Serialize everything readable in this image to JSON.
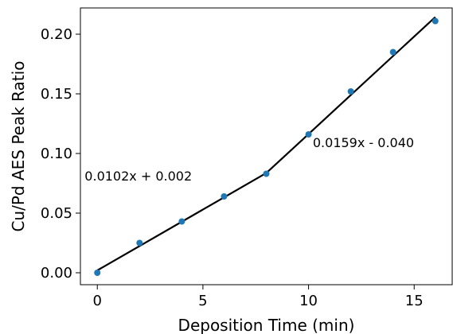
{
  "chart_data": {
    "type": "scatter",
    "title": "",
    "xlabel": "Deposition Time (min)",
    "ylabel": "Cu/Pd AES Peak Ratio",
    "xlim": [
      -0.8,
      16.8
    ],
    "ylim": [
      -0.01,
      0.222
    ],
    "xticks": [
      0,
      5,
      10,
      15
    ],
    "xtick_labels": [
      "0",
      "5",
      "10",
      "15"
    ],
    "yticks": [
      0.0,
      0.05,
      0.1,
      0.15,
      0.2
    ],
    "ytick_labels": [
      "0.00",
      "0.05",
      "0.10",
      "0.15",
      "0.20"
    ],
    "grid": false,
    "legend": "none",
    "series": [
      {
        "kind": "points",
        "color": "#1f77b4",
        "x": [
          0,
          2,
          4,
          6,
          8,
          10,
          12,
          14,
          16
        ],
        "y": [
          0.0,
          0.025,
          0.043,
          0.064,
          0.083,
          0.116,
          0.152,
          0.185,
          0.211
        ]
      },
      {
        "kind": "fit-line",
        "color": "#000000",
        "x": [
          0,
          8,
          16
        ],
        "y": [
          0.002,
          0.0836,
          0.2144
        ]
      }
    ],
    "annotations": [
      {
        "text": "0.0102x + 0.002",
        "x": -0.6,
        "y": 0.0775
      },
      {
        "text": "0.0159x - 0.040",
        "x": 10.2,
        "y": 0.1055
      }
    ]
  }
}
